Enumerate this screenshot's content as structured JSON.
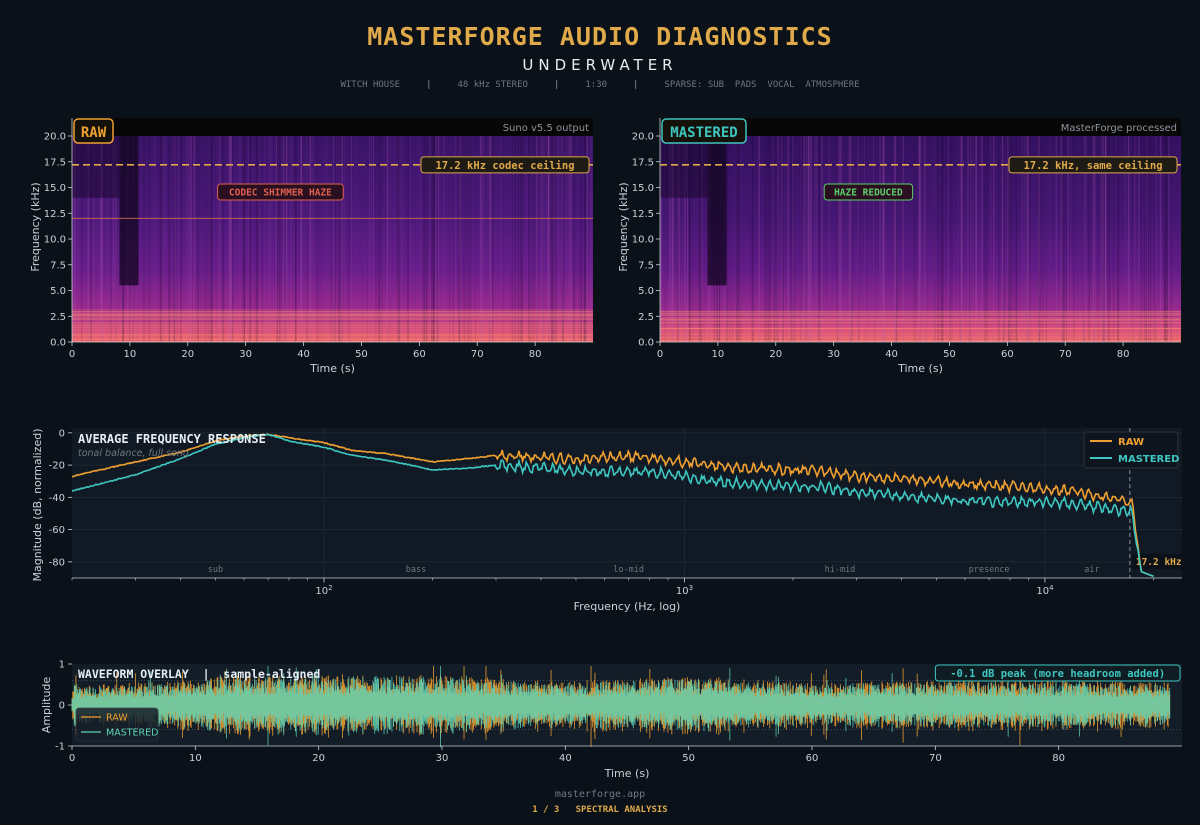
{
  "header": {
    "title": "MASTERFORGE AUDIO DIAGNOSTICS",
    "subtitle": "UNDERWATER",
    "meta": [
      "WITCH HOUSE",
      "48 kHz STEREO",
      "1:30",
      "SPARSE: SUB  PADS  VOCAL  ATMOSPHERE"
    ]
  },
  "footer": {
    "url": "masterforge.app",
    "page": "1 / 3",
    "section": "SPECTRAL ANALYSIS"
  },
  "colors": {
    "raw": "#f0a030",
    "mastered": "#3ec6c0",
    "accent": "#e0a94a",
    "background": "#0b1118",
    "panel": "#111a24",
    "haze_warning": "#e06050",
    "haze_ok": "#5cd06a"
  },
  "chart_data": [
    {
      "type": "heatmap",
      "panel": "RAW",
      "badge": "RAW",
      "note": "Suno v5.5 output",
      "xlabel": "Time (s)",
      "ylabel": "Frequency (kHz)",
      "xlim": [
        0,
        90
      ],
      "ylim": [
        0,
        20
      ],
      "xticks": [
        0,
        10,
        20,
        30,
        40,
        50,
        60,
        70,
        80
      ],
      "yticks": [
        "0.0",
        "2.5",
        "5.0",
        "7.5",
        "10.0",
        "12.5",
        "15.0",
        "17.5",
        "20.0"
      ],
      "ceiling_khz": 17.2,
      "ceiling_label": "17.2 kHz codec ceiling",
      "haze_label": "CODEC SHIMMER HAZE",
      "haze_line_khz": 12,
      "colormap": "magma"
    },
    {
      "type": "heatmap",
      "panel": "MASTERED",
      "badge": "MASTERED",
      "note": "MasterForge processed",
      "xlabel": "Time (s)",
      "ylabel": "Frequency (kHz)",
      "xlim": [
        0,
        90
      ],
      "ylim": [
        0,
        20
      ],
      "xticks": [
        0,
        10,
        20,
        30,
        40,
        50,
        60,
        70,
        80
      ],
      "yticks": [
        "0.0",
        "2.5",
        "5.0",
        "7.5",
        "10.0",
        "12.5",
        "15.0",
        "17.5",
        "20.0"
      ],
      "ceiling_khz": 17.2,
      "ceiling_label": "17.2 kHz, same ceiling",
      "haze_label": "HAZE REDUCED",
      "colormap": "magma"
    },
    {
      "type": "line",
      "title": "AVERAGE FREQUENCY RESPONSE",
      "subtitle": "tonal balance, full song",
      "xlabel": "Frequency (Hz, log)",
      "ylabel": "Magnitude (dB, normalized)",
      "xscale": "log",
      "xlim": [
        20,
        24000
      ],
      "ylim": [
        -90,
        3
      ],
      "yticks": [
        0,
        -20,
        -40,
        -60,
        -80
      ],
      "xticks": [
        {
          "value": 100,
          "base": "10",
          "exp": "2"
        },
        {
          "value": 1000,
          "base": "10",
          "exp": "3"
        },
        {
          "value": 10000,
          "base": "10",
          "exp": "4"
        }
      ],
      "bands": [
        {
          "label": "sub",
          "at": 50
        },
        {
          "label": "bass",
          "at": 180
        },
        {
          "label": "lo-mid",
          "at": 700
        },
        {
          "label": "hi-mid",
          "at": 2700
        },
        {
          "label": "presence",
          "at": 7000
        },
        {
          "label": "air",
          "at": 13500
        }
      ],
      "ceiling_hz": 17200,
      "ceiling_label": "17.2 kHz",
      "legend": "top-right",
      "series": [
        {
          "name": "RAW",
          "x": [
            20,
            30,
            40,
            50,
            60,
            70,
            80,
            100,
            120,
            150,
            200,
            250,
            300,
            400,
            500,
            600,
            800,
            1000,
            1200,
            1500,
            2000,
            2500,
            3000,
            4000,
            5000,
            6000,
            8000,
            10000,
            12000,
            14000,
            16000,
            17000,
            17500,
            18500,
            20000
          ],
          "y": [
            -27,
            -18,
            -12,
            -5,
            -2,
            -1,
            -3,
            -6,
            -11,
            -13,
            -18,
            -16,
            -14,
            -15,
            -17,
            -15,
            -15,
            -18,
            -20,
            -22,
            -23,
            -24,
            -27,
            -28,
            -30,
            -32,
            -33,
            -35,
            -36,
            -39,
            -41,
            -42,
            -44,
            -86,
            -89
          ]
        },
        {
          "name": "MASTERED",
          "x": [
            20,
            30,
            40,
            50,
            60,
            70,
            80,
            100,
            120,
            150,
            200,
            250,
            300,
            400,
            500,
            600,
            800,
            1000,
            1200,
            1500,
            2000,
            2500,
            3000,
            4000,
            5000,
            6000,
            8000,
            10000,
            12000,
            14000,
            16000,
            17000,
            17500,
            18500,
            20000
          ],
          "y": [
            -36,
            -26,
            -16,
            -7,
            -3,
            -1,
            -5,
            -9,
            -14,
            -17,
            -23,
            -22,
            -20,
            -22,
            -24,
            -24,
            -24,
            -27,
            -30,
            -32,
            -33,
            -34,
            -37,
            -39,
            -41,
            -42,
            -43,
            -43,
            -44,
            -46,
            -48,
            -48,
            -50,
            -86,
            -89
          ]
        }
      ]
    },
    {
      "type": "area",
      "title": "WAVEFORM OVERLAY  |  sample-aligned",
      "badge": "-0.1 dB peak (more headroom added)",
      "xlabel": "Time (s)",
      "ylabel": "Amplitude",
      "xlim": [
        0,
        90
      ],
      "ylim": [
        -1,
        1
      ],
      "xticks": [
        0,
        10,
        20,
        30,
        40,
        50,
        60,
        70,
        80
      ],
      "yticks": [
        "1",
        "0",
        "-1"
      ],
      "legend": "bottom-left",
      "series": [
        {
          "name": "RAW",
          "envelope_t": [
            0,
            5,
            10,
            12,
            20,
            30,
            40,
            41,
            50,
            60,
            70,
            80,
            89
          ],
          "envelope_peak": [
            0.45,
            0.55,
            0.6,
            0.7,
            0.75,
            0.75,
            0.55,
            0.6,
            0.7,
            0.55,
            0.6,
            0.6,
            0.55
          ]
        },
        {
          "name": "MASTERED",
          "envelope_t": [
            0,
            5,
            10,
            12,
            20,
            30,
            40,
            41,
            50,
            60,
            70,
            80,
            89
          ],
          "envelope_peak": [
            0.4,
            0.5,
            0.55,
            0.65,
            0.7,
            0.7,
            0.5,
            0.55,
            0.65,
            0.5,
            0.55,
            0.55,
            0.5
          ]
        }
      ]
    }
  ]
}
